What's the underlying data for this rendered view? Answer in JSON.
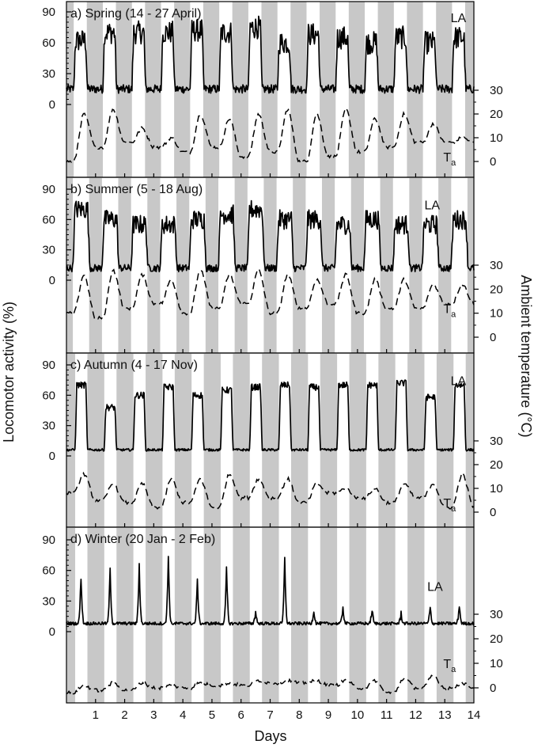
{
  "chart_data": {
    "type": "line",
    "xlabel": "Days",
    "ylabel_left": "Locomotor activity (%)",
    "ylabel_right": "Ambient temperature (°C)",
    "xlim": [
      0,
      14
    ],
    "x_ticks": [
      1,
      2,
      3,
      4,
      5,
      6,
      7,
      8,
      9,
      10,
      11,
      12,
      13,
      14
    ],
    "y_ticks_activity": [
      0,
      30,
      60,
      90
    ],
    "y_ticks_temperature": [
      0,
      10,
      20,
      30
    ],
    "shading": "grey vertical bands mark the dark phase of each day",
    "activity_label": "LA",
    "temperature_label_base": "T",
    "temperature_label_sub": "a",
    "panels": [
      {
        "title": "a) Spring (14 - 27 April)",
        "dark_phase": [
          0.7,
          0.25
        ],
        "activity": {
          "baseline": 15,
          "noise": 14,
          "peak": [
            62,
            70,
            70,
            70,
            72,
            70,
            75,
            60,
            68,
            65,
            60,
            65,
            60,
            65
          ],
          "active_phase": [
            0.25,
            0.72
          ]
        },
        "temperature": {
          "min": [
            0,
            6,
            8,
            6,
            4,
            6,
            2,
            4,
            0,
            2,
            4,
            6,
            8,
            8
          ],
          "max": [
            20,
            22,
            14,
            10,
            20,
            18,
            20,
            22,
            20,
            22,
            18,
            20,
            16,
            10
          ]
        },
        "activity_label_pos": [
          13.2,
          80
        ],
        "temperature_label_pos": [
          12.95,
          0
        ]
      },
      {
        "title": "b) Summer (5 - 18 Aug)",
        "dark_phase": [
          0.78,
          0.22
        ],
        "activity": {
          "baseline": 12,
          "noise": 12,
          "peak": [
            70,
            60,
            55,
            55,
            60,
            65,
            70,
            60,
            60,
            55,
            60,
            55,
            55,
            60
          ],
          "active_phase": [
            0.22,
            0.8
          ]
        },
        "temperature": {
          "min": [
            10,
            8,
            12,
            14,
            10,
            12,
            14,
            10,
            12,
            14,
            10,
            12,
            12,
            14
          ],
          "max": [
            26,
            28,
            26,
            24,
            28,
            26,
            28,
            26,
            24,
            26,
            24,
            24,
            22,
            22
          ]
        },
        "activity_label_pos": [
          12.3,
          70
        ],
        "temperature_label_pos": [
          12.95,
          10
        ]
      },
      {
        "title": "c) Autumn (4 - 17 Nov)",
        "dark_phase": [
          0.72,
          0.3
        ],
        "activity": {
          "baseline": 6,
          "noise": 4,
          "peak": [
            70,
            48,
            60,
            68,
            60,
            65,
            68,
            70,
            68,
            70,
            70,
            72,
            58,
            70
          ],
          "active_phase": [
            0.3,
            0.72
          ]
        },
        "temperature": {
          "min": [
            8,
            5,
            4,
            2,
            4,
            2,
            6,
            6,
            4,
            8,
            6,
            4,
            6,
            2
          ],
          "max": [
            16,
            12,
            12,
            14,
            14,
            16,
            14,
            14,
            12,
            10,
            10,
            12,
            12,
            16
          ]
        },
        "activity_label_pos": [
          13.2,
          70
        ],
        "temperature_label_pos": [
          12.95,
          2
        ]
      },
      {
        "title": "d) Winter (20 Jan - 2 Feb)",
        "dark_phase": [
          0.72,
          0.3
        ],
        "activity": {
          "baseline": 8,
          "noise": 5,
          "peak": [
            55,
            60,
            65,
            75,
            50,
            62,
            20,
            70,
            22,
            25,
            22,
            18,
            24,
            26
          ],
          "active_phase": [
            0.4,
            0.6
          ]
        },
        "temperature": {
          "min": [
            -2,
            -1,
            -1,
            0,
            0,
            1,
            1,
            2,
            2,
            1,
            0,
            -2,
            0,
            0
          ],
          "max": [
            1,
            2,
            2,
            1,
            2,
            2,
            3,
            3,
            3,
            3,
            3,
            4,
            5,
            2
          ]
        },
        "activity_label_pos": [
          12.4,
          40
        ],
        "temperature_label_pos": [
          12.95,
          8
        ]
      }
    ]
  }
}
